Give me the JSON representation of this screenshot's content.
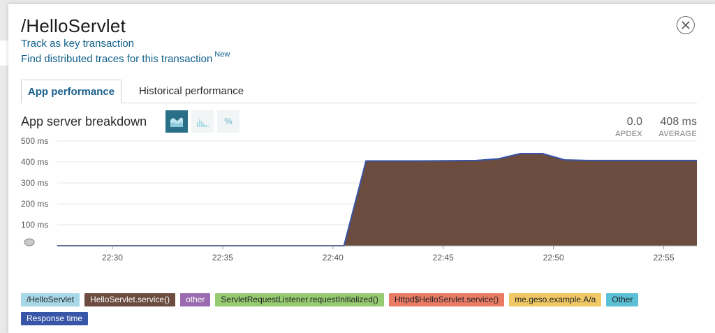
{
  "header": {
    "title": "/HelloServlet",
    "track_link": "Track as key transaction",
    "traces_link": "Find distributed traces for this transaction",
    "traces_badge": "New"
  },
  "tabs": [
    {
      "label": "App performance",
      "active": true
    },
    {
      "label": "Historical performance",
      "active": false
    }
  ],
  "breakdown": {
    "title": "App server breakdown",
    "view_buttons": [
      "area-chart-icon",
      "bar-chart-icon",
      "percent-icon"
    ],
    "percent_label": "%",
    "apdex": {
      "value": "0.0",
      "label": "APDEX"
    },
    "average": {
      "value": "408 ms",
      "label": "AVERAGE"
    }
  },
  "chart_data": {
    "type": "area",
    "title": "",
    "xlabel": "",
    "ylabel": "",
    "ylim": [
      0,
      500
    ],
    "xlim": [
      "22:27:30",
      "22:56:30"
    ],
    "y_ticks": [
      "100 ms",
      "200 ms",
      "300 ms",
      "400 ms",
      "500 ms"
    ],
    "x_ticks": [
      "22:30",
      "22:35",
      "22:40",
      "22:45",
      "22:50",
      "22:55"
    ],
    "grid": true,
    "series": [
      {
        "name": "HelloServlet.service()",
        "color": "#6b4c3f",
        "x": [
          "22:27:30",
          "22:40:30",
          "22:41:30",
          "22:44:00",
          "22:46:30",
          "22:47:30",
          "22:48:30",
          "22:49:30",
          "22:50:30",
          "22:51:30",
          "22:53:30",
          "22:56:30"
        ],
        "values": [
          0,
          0,
          405,
          405,
          407,
          415,
          440,
          440,
          410,
          407,
          407,
          407
        ]
      },
      {
        "name": "Response time",
        "color": "#3856a8",
        "x": [
          "22:27:30",
          "22:40:30",
          "22:41:30",
          "22:44:00",
          "22:46:30",
          "22:47:30",
          "22:48:30",
          "22:49:30",
          "22:50:30",
          "22:51:30",
          "22:53:30",
          "22:56:30"
        ],
        "values": [
          0,
          0,
          405,
          405,
          407,
          415,
          440,
          440,
          410,
          407,
          407,
          407
        ]
      }
    ]
  },
  "legend": [
    {
      "label": "/HelloServlet",
      "bg": "#a8d8e8",
      "fg": "#222222"
    },
    {
      "label": "HelloServlet.service()",
      "bg": "#6b4c3f",
      "fg": "#ffffff"
    },
    {
      "label": "other",
      "bg": "#9a6bb0",
      "fg": "#ffffff"
    },
    {
      "label": "ServletRequestListener.requestInitialized()",
      "bg": "#97cb72",
      "fg": "#222222"
    },
    {
      "label": "Httpd$HelloServlet.service()",
      "bg": "#ea7c66",
      "fg": "#222222"
    },
    {
      "label": "me.geso.example.A/a",
      "bg": "#f0c966",
      "fg": "#222222"
    },
    {
      "label": "Other",
      "bg": "#5bbfd6",
      "fg": "#222222"
    },
    {
      "label": "Response time",
      "bg": "#3856a8",
      "fg": "#ffffff"
    }
  ]
}
